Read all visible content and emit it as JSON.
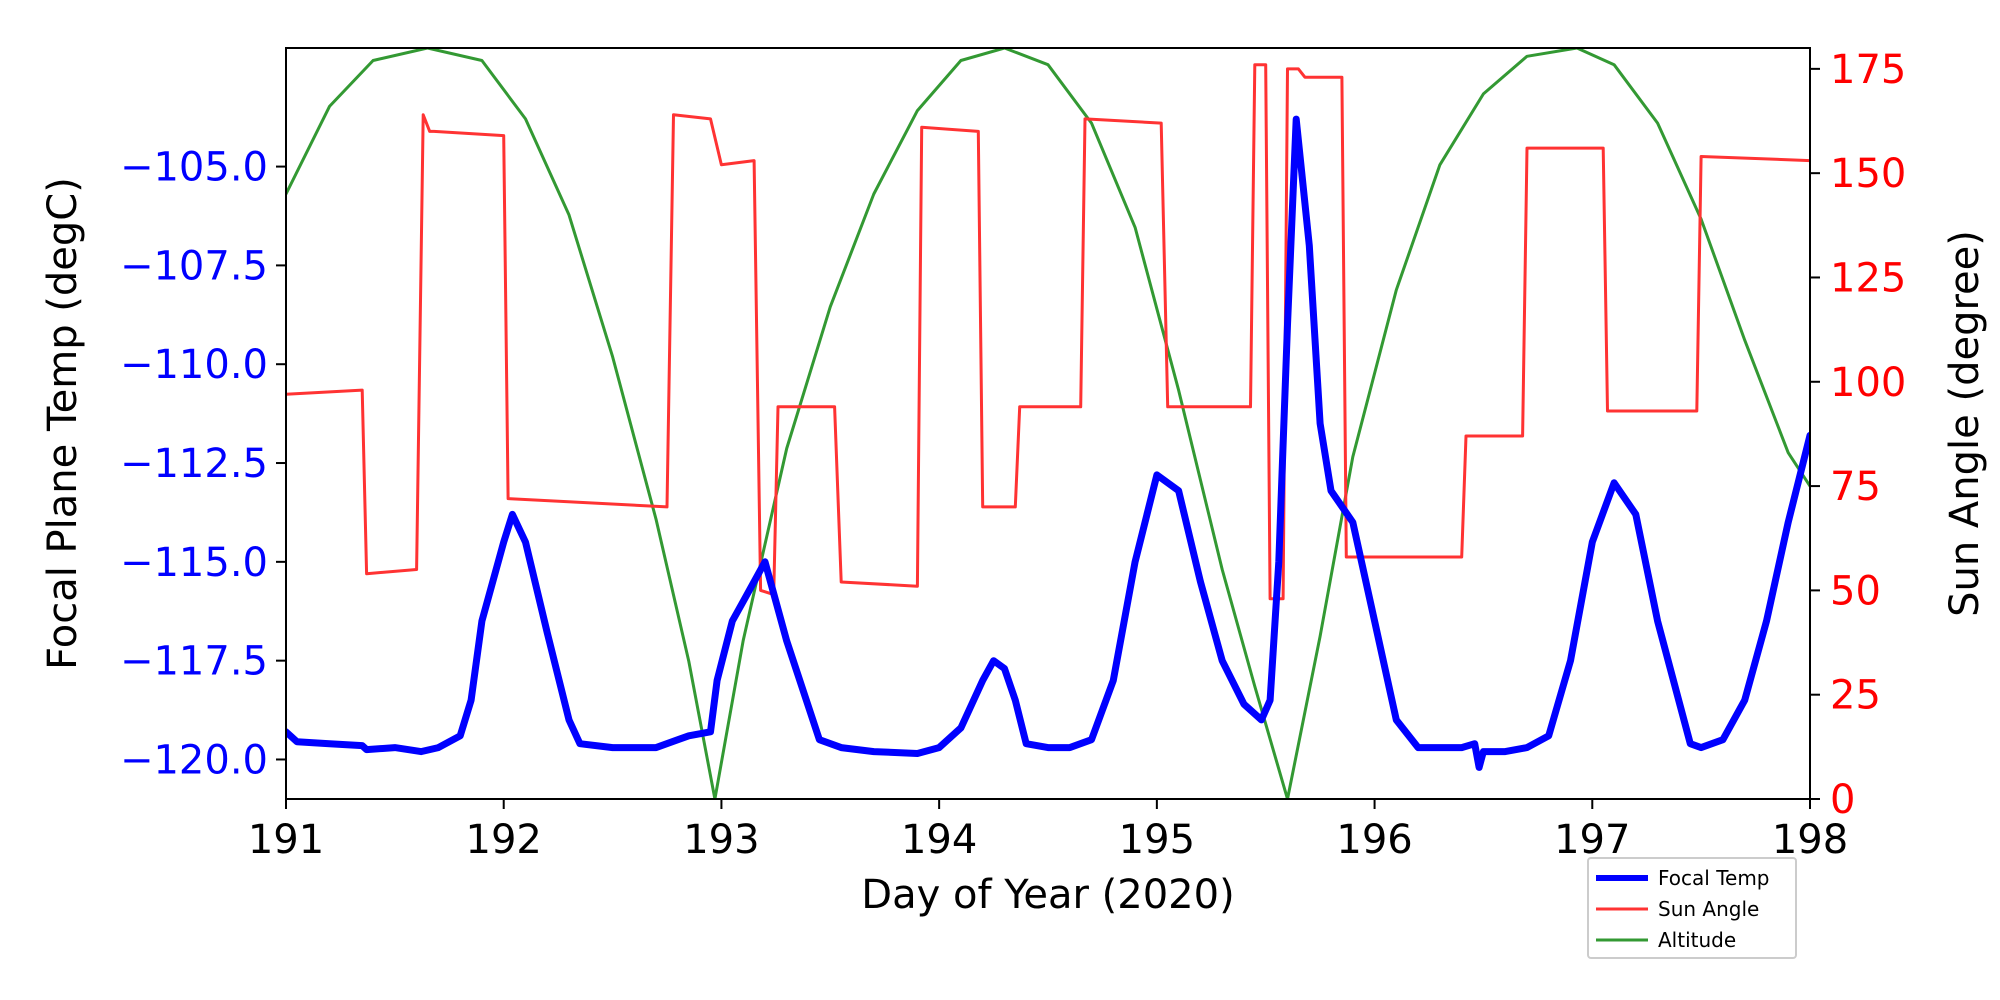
{
  "chart_data": {
    "type": "line",
    "xlabel": "Day of Year (2020)",
    "ylabel_left": "Focal Plane Temp (degC)",
    "ylabel_right": "Sun Angle (degree)",
    "xlim": [
      191,
      198
    ],
    "ylim_left": [
      -121,
      -102
    ],
    "ylim_right": [
      0,
      180
    ],
    "x_ticks": [
      191,
      192,
      193,
      194,
      195,
      196,
      197,
      198
    ],
    "y_left_ticks": [
      "−105.0",
      "−107.5",
      "−110.0",
      "−112.5",
      "−115.0",
      "−117.5",
      "−120.0"
    ],
    "y_left_tick_values": [
      -105.0,
      -107.5,
      -110.0,
      -112.5,
      -115.0,
      -117.5,
      -120.0
    ],
    "y_right_ticks": [
      0,
      25,
      50,
      75,
      100,
      125,
      150,
      175
    ],
    "grid": false,
    "legend": {
      "placement": "below-right",
      "entries": [
        "Focal Temp",
        "Sun Angle",
        "Altitude"
      ]
    },
    "colors": {
      "focal_temp": "#0000ff",
      "sun_angle": "#ff3333",
      "altitude": "#339933",
      "left_axis": "#0000ff",
      "right_axis": "#ff0000"
    },
    "series": [
      {
        "name": "Focal Temp",
        "axis": "left",
        "x": [
          191.0,
          191.05,
          191.2,
          191.35,
          191.37,
          191.5,
          191.62,
          191.7,
          191.8,
          191.85,
          191.9,
          192.0,
          192.04,
          192.1,
          192.2,
          192.3,
          192.35,
          192.5,
          192.7,
          192.8,
          192.85,
          192.95,
          192.98,
          193.05,
          193.1,
          193.2,
          193.3,
          193.45,
          193.55,
          193.7,
          193.9,
          194.0,
          194.1,
          194.2,
          194.25,
          194.3,
          194.35,
          194.4,
          194.5,
          194.6,
          194.7,
          194.8,
          194.9,
          195.0,
          195.1,
          195.2,
          195.3,
          195.4,
          195.48,
          195.52,
          195.56,
          195.6,
          195.64,
          195.7,
          195.75,
          195.8,
          195.9,
          196.0,
          196.1,
          196.2,
          196.4,
          196.46,
          196.48,
          196.5,
          196.6,
          196.7,
          196.8,
          196.9,
          197.0,
          197.1,
          197.2,
          197.3,
          197.45,
          197.5,
          197.6,
          197.7,
          197.8,
          197.9,
          198.0
        ],
        "y": [
          -119.3,
          -119.55,
          -119.6,
          -119.65,
          -119.75,
          -119.7,
          -119.8,
          -119.7,
          -119.4,
          -118.5,
          -116.5,
          -114.5,
          -113.8,
          -114.5,
          -116.8,
          -119.0,
          -119.6,
          -119.7,
          -119.7,
          -119.5,
          -119.4,
          -119.3,
          -118.0,
          -116.5,
          -116.0,
          -115.0,
          -117.0,
          -119.5,
          -119.7,
          -119.8,
          -119.85,
          -119.7,
          -119.2,
          -118.0,
          -117.5,
          -117.7,
          -118.5,
          -119.6,
          -119.7,
          -119.7,
          -119.5,
          -118.0,
          -115.0,
          -112.8,
          -113.2,
          -115.5,
          -117.5,
          -118.6,
          -119.0,
          -118.5,
          -115.0,
          -109.0,
          -103.8,
          -107.0,
          -111.5,
          -113.2,
          -114.0,
          -116.5,
          -119.0,
          -119.7,
          -119.7,
          -119.6,
          -120.2,
          -119.8,
          -119.8,
          -119.7,
          -119.4,
          -117.5,
          -114.5,
          -113.0,
          -113.8,
          -116.5,
          -119.6,
          -119.7,
          -119.5,
          -118.5,
          -116.5,
          -114.0,
          -111.8
        ]
      },
      {
        "name": "Sun Angle",
        "axis": "right",
        "x": [
          191.0,
          191.35,
          191.37,
          191.6,
          191.63,
          191.66,
          191.68,
          192.0,
          192.02,
          192.75,
          192.78,
          192.95,
          193.0,
          193.15,
          193.18,
          193.24,
          193.26,
          193.52,
          193.55,
          193.9,
          193.92,
          194.18,
          194.2,
          194.35,
          194.37,
          194.65,
          194.67,
          195.02,
          195.05,
          195.43,
          195.45,
          195.5,
          195.52,
          195.58,
          195.6,
          195.65,
          195.68,
          195.85,
          195.87,
          196.4,
          196.42,
          196.68,
          196.7,
          197.05,
          197.07,
          197.48,
          197.5,
          198.0
        ],
        "y": [
          97,
          98,
          54,
          55,
          164,
          160,
          160,
          159,
          72,
          70,
          164,
          163,
          152,
          153,
          50,
          49,
          94,
          94,
          52,
          51,
          161,
          160,
          70,
          70,
          94,
          94,
          163,
          162,
          94,
          94,
          176,
          176,
          48,
          48,
          175,
          175,
          173,
          173,
          58,
          58,
          87,
          87,
          156,
          156,
          93,
          93,
          154,
          153
        ]
      },
      {
        "name": "Altitude",
        "axis": "right",
        "x": [
          191.0,
          191.2,
          191.4,
          191.65,
          191.9,
          192.1,
          192.3,
          192.5,
          192.7,
          192.85,
          192.97,
          193.1,
          193.3,
          193.5,
          193.7,
          193.9,
          194.1,
          194.3,
          194.5,
          194.7,
          194.9,
          195.1,
          195.3,
          195.45,
          195.6,
          195.75,
          195.9,
          196.1,
          196.3,
          196.5,
          196.7,
          196.93,
          197.1,
          197.3,
          197.5,
          197.7,
          197.9,
          198.0
        ],
        "y": [
          145,
          166,
          177,
          180,
          177,
          163,
          140,
          106,
          67,
          33,
          0,
          38,
          84,
          118,
          145,
          165,
          177,
          180,
          176,
          162,
          137,
          98,
          55,
          27,
          0,
          39,
          82,
          122,
          152,
          169,
          178,
          180,
          176,
          162,
          139,
          110,
          83,
          75
        ]
      }
    ]
  }
}
